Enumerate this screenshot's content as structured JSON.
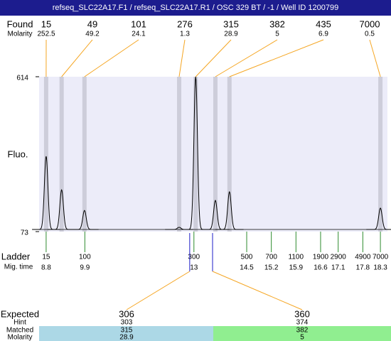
{
  "chart_data": {
    "type": "electropherogram",
    "title": "refseq_SLC22A17.F1 / refseq_SLC22A17.R1 / OSC 329 BT / -1 / Well ID 1200799",
    "ylabel": "Fluo.",
    "ylim": [
      73,
      614
    ],
    "yticks": [
      73,
      614
    ],
    "xlim": [
      8.6,
      18.5
    ],
    "found": {
      "label": "Found",
      "molarity_label": "Molarity",
      "sizes": [
        15,
        49,
        101,
        276,
        315,
        382,
        435,
        7000
      ],
      "molarity": [
        252.5,
        49.2,
        24.1,
        1.3,
        28.9,
        5,
        6.9,
        0.5
      ],
      "times": [
        8.8,
        9.24,
        9.89,
        12.58,
        13.05,
        13.61,
        14.01,
        18.3
      ],
      "heights": [
        336,
        219,
        147,
        88,
        614,
        182,
        212,
        155
      ]
    },
    "ladder": {
      "label": "Ladder",
      "time_label": "Mig. time",
      "sizes": [
        15,
        100,
        300,
        500,
        700,
        1100,
        1900,
        2900,
        4900,
        7000
      ],
      "times": [
        8.8,
        9.9,
        13,
        14.5,
        15.2,
        15.9,
        16.6,
        17.1,
        17.8,
        18.3
      ]
    },
    "expected": {
      "label": "Expected",
      "hint_label": "Hint",
      "matched_label": "Matched",
      "molarity_label": "Molarity",
      "sizes": [
        306,
        360
      ],
      "hint": [
        303,
        374
      ],
      "matched": [
        315,
        382
      ],
      "molarity": [
        28.9,
        5
      ],
      "times": [
        12.88,
        13.53
      ]
    }
  }
}
